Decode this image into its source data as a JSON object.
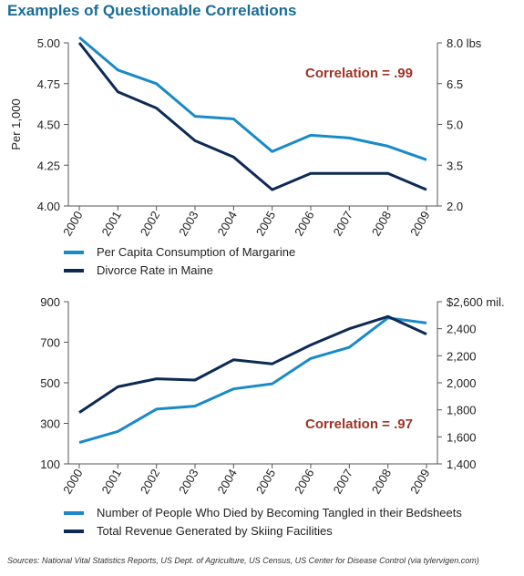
{
  "title": "Examples of Questionable Correlations",
  "source": "Sources: National Vital Statistics Reports, US Dept. of Agriculture, US Census, US Center for Disease Control (via tylervigen.com)",
  "colors": {
    "series_a": "#1a8ac6",
    "series_b": "#0d2a55",
    "correlation": "#9b3425",
    "title": "#1a6d98",
    "axis": "#555555"
  },
  "chart_data": [
    {
      "type": "line",
      "x": [
        "2000",
        "2001",
        "2002",
        "2003",
        "2004",
        "2005",
        "2006",
        "2007",
        "2008",
        "2009"
      ],
      "ylabel": "Per 1,000",
      "ylim": [
        4.0,
        5.0
      ],
      "yticks": [
        "5.00",
        "4.75",
        "4.50",
        "4.25",
        "4.00"
      ],
      "y2lim": [
        2.0,
        8.0
      ],
      "y2ticks": [
        "8.0 lbs",
        "6.5",
        "5.0",
        "3.5",
        "2.0"
      ],
      "annotation": "Correlation = .99",
      "legend_position": "bottom",
      "grid": false,
      "series": [
        {
          "name": "Per Capita Consumption of Margarine",
          "axis": "right",
          "values": [
            8.2,
            7.0,
            6.5,
            5.3,
            5.2,
            4.0,
            4.6,
            4.5,
            4.2,
            3.7
          ]
        },
        {
          "name": "Divorce Rate in Maine",
          "axis": "left",
          "values": [
            5.0,
            4.7,
            4.6,
            4.4,
            4.3,
            4.1,
            4.2,
            4.2,
            4.2,
            4.1
          ]
        }
      ]
    },
    {
      "type": "line",
      "x": [
        "2000",
        "2001",
        "2002",
        "2003",
        "2004",
        "2005",
        "2006",
        "2007",
        "2008",
        "2009"
      ],
      "ylim": [
        100,
        900
      ],
      "yticks": [
        "900",
        "700",
        "500",
        "300",
        "100"
      ],
      "y2lim": [
        1400,
        2600
      ],
      "y2ticks": [
        "$2,600 mil.",
        "2,400",
        "2,200",
        "2,000",
        "1,800",
        "1,600",
        "1,400"
      ],
      "annotation": "Correlation = .97",
      "legend_position": "bottom",
      "grid": false,
      "series": [
        {
          "name": "Number of People Who Died by Becoming Tangled in their Bedsheets",
          "axis": "left",
          "values": [
            205,
            260,
            370,
            385,
            470,
            495,
            620,
            675,
            820,
            795
          ]
        },
        {
          "name": "Total Revenue Generated by Skiing Facilities",
          "axis": "right",
          "values": [
            1780,
            1970,
            2030,
            2020,
            2170,
            2140,
            2280,
            2400,
            2490,
            2360
          ]
        }
      ]
    }
  ]
}
